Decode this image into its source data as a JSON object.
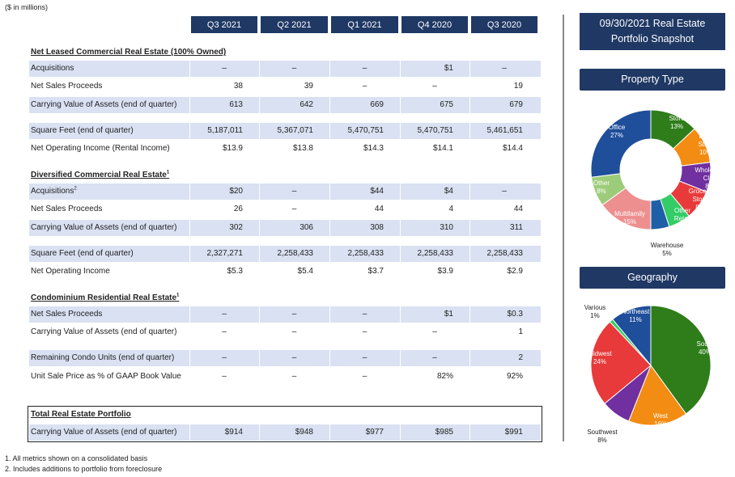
{
  "units": "($ in millions)",
  "columns": [
    "Q3 2021",
    "Q2 2021",
    "Q1 2021",
    "Q4 2020",
    "Q3 2020"
  ],
  "sections": {
    "net_leased": {
      "title": "Net Leased Commercial Real Estate (100% Owned)",
      "sup": ""
    },
    "diversified": {
      "title": "Diversified Commercial Real Estate",
      "sup": "1"
    },
    "condo": {
      "title": "Condominium Residential Real Estate",
      "sup": "1"
    },
    "total": {
      "title": "Total Real Estate Portfolio",
      "sup": ""
    }
  },
  "rows": [
    {
      "label": "Acquisitions",
      "sup": "",
      "values": [
        "–",
        "–",
        "–",
        "$1",
        "–"
      ]
    },
    {
      "label": "Net Sales Proceeds",
      "sup": "",
      "values": [
        "38",
        "39",
        "–",
        "–",
        "19"
      ]
    },
    {
      "label": "Carrying Value of Assets (end of quarter)",
      "sup": "",
      "values": [
        "613",
        "642",
        "669",
        "675",
        "679"
      ]
    },
    {
      "label": "Square Feet (end of quarter)",
      "sup": "",
      "values": [
        "5,187,011",
        "5,367,071",
        "5,470,751",
        "5,470,751",
        "5,461,651"
      ]
    },
    {
      "label": "Net Operating Income (Rental Income)",
      "sup": "",
      "values": [
        "$13.9",
        "$13.8",
        "$14.3",
        "$14.1",
        "$14.4"
      ]
    },
    {
      "label": "Acquisitions",
      "sup": "2",
      "values": [
        "$20",
        "–",
        "$44",
        "$4",
        "–"
      ]
    },
    {
      "label": "Net Sales Proceeds",
      "sup": "",
      "values": [
        "26",
        "–",
        "44",
        "4",
        "44"
      ]
    },
    {
      "label": "Carrying Value of Assets (end of quarter)",
      "sup": "",
      "values": [
        "302",
        "306",
        "308",
        "310",
        "311"
      ]
    },
    {
      "label": "Square Feet (end of quarter)",
      "sup": "",
      "values": [
        "2,327,271",
        "2,258,433",
        "2,258,433",
        "2,258,433",
        "2,258,433"
      ]
    },
    {
      "label": "Net Operating Income",
      "sup": "",
      "values": [
        "$5.3",
        "$5.4",
        "$3.7",
        "$3.9",
        "$2.9"
      ]
    },
    {
      "label": "Net Sales Proceeds",
      "sup": "",
      "values": [
        "–",
        "–",
        "–",
        "$1",
        "$0.3"
      ]
    },
    {
      "label": "Carrying Value of Assets (end of quarter)",
      "sup": "",
      "values": [
        "–",
        "–",
        "–",
        "–",
        "1"
      ]
    },
    {
      "label": "Remaining Condo Units (end of quarter)",
      "sup": "",
      "values": [
        "–",
        "–",
        "–",
        "–",
        "2"
      ]
    },
    {
      "label": "Unit Sale Price as % of GAAP Book Value",
      "sup": "",
      "values": [
        "–",
        "–",
        "–",
        "82%",
        "92%"
      ]
    },
    {
      "label": "Carrying Value of Assets (end of quarter)",
      "sup": "",
      "values": [
        "$914",
        "$948",
        "$977",
        "$985",
        "$991"
      ]
    }
  ],
  "footnotes": [
    "1. All metrics shown on a consolidated basis",
    "2. Includes additions to portfolio from foreclosure"
  ],
  "snapshot": {
    "title_line1": "09/30/2021 Real Estate",
    "title_line2": "Portfolio Snapshot",
    "property_type_label": "Property Type",
    "geography_label": "Geography"
  },
  "chart_data": [
    {
      "type": "pie",
      "title": "Property Type",
      "slices": [
        {
          "label": "Dollar Store",
          "value": 13,
          "pct": "13%",
          "color": "#2e7d1a"
        },
        {
          "label": "Drug Store",
          "value": 10,
          "pct": "10%",
          "color": "#f28c12"
        },
        {
          "label": "Wholesale Club",
          "value": 8,
          "pct": "8%",
          "color": "#7030a0"
        },
        {
          "label": "Grocery Store",
          "value": 8,
          "pct": "8%",
          "color": "#e83a3a"
        },
        {
          "label": "Other Retail",
          "value": 6,
          "pct": "6%",
          "color": "#33cc66"
        },
        {
          "label": "Warehouse",
          "value": 5,
          "pct": "5%",
          "color": "#1f5fa8"
        },
        {
          "label": "Multifamily",
          "value": 15,
          "pct": "15%",
          "color": "#ee8f8f"
        },
        {
          "label": "Other",
          "value": 8,
          "pct": "8%",
          "color": "#9ccc7a"
        },
        {
          "label": "Office",
          "value": 27,
          "pct": "27%",
          "color": "#1f4e9a"
        }
      ]
    },
    {
      "type": "pie",
      "title": "Geography",
      "slices": [
        {
          "label": "South",
          "value": 40,
          "pct": "40%",
          "color": "#2e7d1a"
        },
        {
          "label": "West",
          "value": 16,
          "pct": "16%",
          "color": "#f28c12"
        },
        {
          "label": "Southwest",
          "value": 8,
          "pct": "8%",
          "color": "#7030a0"
        },
        {
          "label": "Midwest",
          "value": 24,
          "pct": "24%",
          "color": "#e83a3a"
        },
        {
          "label": "Various",
          "value": 1,
          "pct": "1%",
          "color": "#33cc66"
        },
        {
          "label": "Northeast",
          "value": 11,
          "pct": "11%",
          "color": "#1f4e9a"
        }
      ]
    }
  ]
}
